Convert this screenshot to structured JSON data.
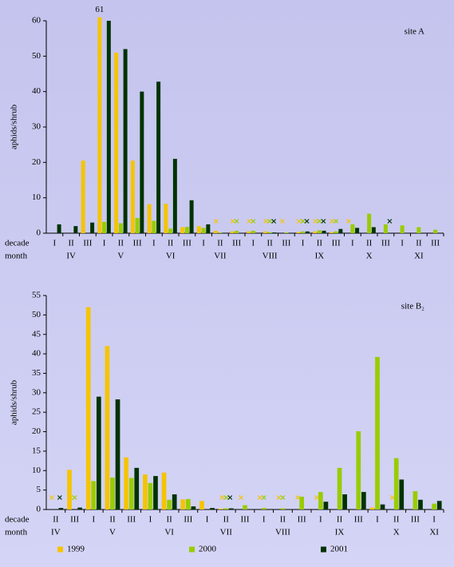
{
  "chart_data": [
    {
      "type": "bar",
      "title": "site A",
      "y_label": "aphids/shrub",
      "row_labels": [
        "decade",
        "month"
      ],
      "categories": [
        "I",
        "II",
        "III",
        "I",
        "II",
        "III",
        "I",
        "II",
        "III",
        "I",
        "II",
        "III",
        "I",
        "II",
        "III",
        "I",
        "II",
        "III",
        "I",
        "II",
        "III",
        "I",
        "II",
        "III"
      ],
      "months": [
        null,
        "IV",
        null,
        null,
        "V",
        null,
        null,
        "VI",
        null,
        null,
        "VII",
        null,
        null,
        "VIII",
        null,
        null,
        "IX",
        null,
        null,
        "X",
        null,
        null,
        "XI",
        null
      ],
      "ylim": [
        0,
        60
      ],
      "yticks": [
        0,
        10,
        20,
        30,
        40,
        50,
        60
      ],
      "series": [
        {
          "name": "1999",
          "color": "#f5c400",
          "values": [
            0,
            0,
            20.5,
            61,
            51,
            20.5,
            8.2,
            8.3,
            1.7,
            2,
            0.7,
            0.5,
            0.5,
            0.5,
            0,
            0.3,
            0.5,
            0.3,
            0,
            0,
            0,
            0,
            0,
            0
          ],
          "crosses": [
            10,
            11,
            12,
            13,
            14,
            15,
            16,
            17,
            18
          ]
        },
        {
          "name": "2000",
          "color": "#99cc00",
          "values": [
            0,
            0,
            0,
            3.2,
            2.8,
            4.3,
            3.5,
            1.3,
            1.8,
            1.5,
            0.2,
            0.7,
            0.7,
            0.3,
            0.2,
            0.5,
            0.8,
            0.5,
            2.5,
            5.5,
            2.5,
            2.2,
            1.7,
            1
          ],
          "crosses": [
            11,
            12,
            13,
            15,
            16,
            17
          ]
        },
        {
          "name": "2001",
          "color": "#003300",
          "values": [
            2.5,
            2,
            3,
            60,
            52,
            40,
            42.8,
            21,
            9.3,
            2.5,
            0,
            0,
            0,
            0.2,
            0,
            0.5,
            0.7,
            1.2,
            1.5,
            1.7,
            0,
            0,
            0,
            0
          ],
          "crosses": [
            13,
            15,
            16,
            20
          ]
        }
      ]
    },
    {
      "type": "bar",
      "title": "site B₂",
      "y_label": "aphids/shrub",
      "row_labels": [
        "decade",
        "month"
      ],
      "legend": "bottom",
      "categories": [
        "II",
        "III",
        "I",
        "II",
        "III",
        "I",
        "II",
        "III",
        "I",
        "II",
        "III",
        "I",
        "II",
        "III",
        "I",
        "II",
        "III",
        "I",
        "II",
        "III",
        "I"
      ],
      "months": [
        "IV",
        null,
        null,
        "V",
        null,
        null,
        "VI",
        null,
        null,
        "VII",
        null,
        null,
        "VIII",
        null,
        null,
        "IX",
        null,
        null,
        "X",
        null,
        "XI"
      ],
      "ylim": [
        0,
        55
      ],
      "yticks": [
        0,
        5,
        10,
        15,
        20,
        25,
        30,
        35,
        40,
        45,
        50,
        55
      ],
      "series": [
        {
          "name": "1999",
          "color": "#f5c400",
          "values": [
            0,
            10.2,
            52,
            42,
            13.4,
            9,
            9.5,
            2.6,
            2.2,
            0.2,
            0,
            0,
            0,
            0,
            0,
            0,
            0,
            0.5,
            0,
            0,
            0
          ],
          "crosses": [
            0,
            1,
            9,
            10,
            11,
            12,
            13,
            14,
            18
          ]
        },
        {
          "name": "2000",
          "color": "#99cc00",
          "values": [
            0,
            0,
            7.3,
            8.2,
            8.1,
            6.8,
            2.5,
            2.7,
            0,
            0.3,
            1.1,
            0.4,
            0.3,
            3.3,
            4.5,
            10.7,
            20.1,
            39.2,
            13.2,
            4.7,
            1.5
          ],
          "crosses": [
            1,
            9,
            11,
            12
          ]
        },
        {
          "name": "2001",
          "color": "#003300",
          "values": [
            0.4,
            0.5,
            29,
            28.3,
            10.7,
            8.6,
            3.9,
            0.8,
            0.4,
            0.3,
            0,
            0,
            0,
            0,
            2,
            3.9,
            4.5,
            1.3,
            7.7,
            2.5,
            2.2
          ],
          "crosses": [
            0,
            9
          ]
        }
      ]
    }
  ]
}
